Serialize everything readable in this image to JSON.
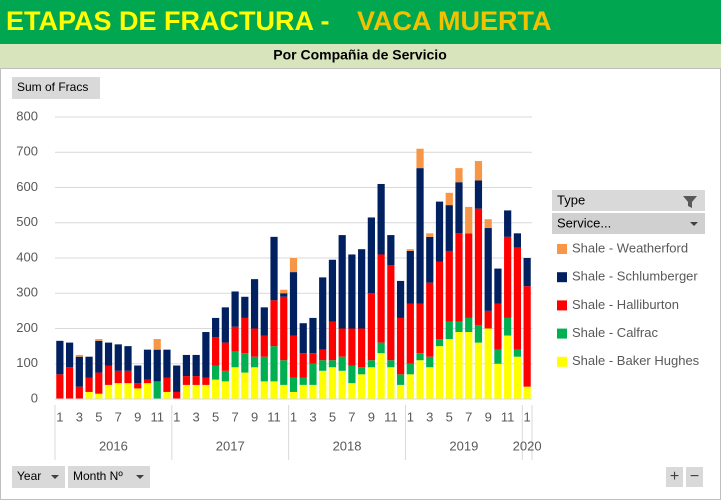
{
  "chart_data": {
    "type": "stacked_bar",
    "title": "ETAPAS DE FRACTURA -",
    "title_highlight": "VACA MUERTA",
    "subtitle": "Por Compañia de Servicio",
    "categories": [
      "1",
      null,
      "3",
      null,
      "5",
      null,
      "7",
      null,
      "9",
      null,
      "11",
      null,
      "1",
      null,
      "3",
      null,
      "5",
      null,
      "7",
      null,
      "9",
      null,
      "11",
      null,
      "1",
      null,
      "3",
      null,
      "5",
      null,
      "7",
      null,
      "9",
      null,
      "11",
      null,
      "1",
      null,
      "3",
      null,
      "5",
      null,
      "7",
      null,
      "9",
      null,
      "11",
      null,
      "1"
    ],
    "years": [
      "2016",
      "2017",
      "2018",
      "2019",
      "2020"
    ],
    "series": [
      {
        "name": "Shale - Baker Hughes",
        "color": "#ffff00",
        "values": [
          0,
          0,
          0,
          20,
          15,
          40,
          45,
          45,
          30,
          45,
          0,
          20,
          0,
          40,
          40,
          40,
          55,
          50,
          90,
          75,
          90,
          50,
          50,
          40,
          20,
          40,
          40,
          80,
          90,
          80,
          45,
          70,
          90,
          130,
          90,
          40,
          70,
          110,
          90,
          150,
          170,
          190,
          190,
          160,
          200,
          100,
          180,
          120,
          35
        ]
      },
      {
        "name": "Shale - Calfrac",
        "color": "#00b050",
        "values": [
          0,
          0,
          0,
          0,
          0,
          0,
          0,
          0,
          0,
          0,
          50,
          0,
          0,
          0,
          0,
          0,
          40,
          30,
          45,
          55,
          30,
          70,
          100,
          70,
          40,
          20,
          60,
          30,
          20,
          40,
          50,
          20,
          20,
          30,
          20,
          30,
          30,
          20,
          30,
          20,
          50,
          30,
          40,
          50,
          0,
          40,
          50,
          20,
          0
        ]
      },
      {
        "name": "Shale - Halliburton",
        "color": "#ff0000",
        "values": [
          70,
          90,
          35,
          40,
          60,
          55,
          35,
          35,
          15,
          10,
          0,
          40,
          20,
          25,
          25,
          20,
          80,
          80,
          70,
          100,
          80,
          60,
          130,
          180,
          120,
          70,
          30,
          30,
          110,
          80,
          105,
          110,
          190,
          250,
          270,
          160,
          170,
          140,
          210,
          220,
          200,
          250,
          240,
          330,
          50,
          130,
          230,
          290,
          285
        ]
      },
      {
        "name": "Shale - Schlumberger",
        "color": "#002060",
        "values": [
          95,
          70,
          85,
          60,
          90,
          65,
          75,
          70,
          50,
          85,
          90,
          80,
          75,
          60,
          60,
          130,
          55,
          100,
          100,
          60,
          140,
          80,
          180,
          10,
          180,
          85,
          100,
          205,
          175,
          265,
          210,
          225,
          215,
          200,
          85,
          105,
          150,
          385,
          130,
          170,
          130,
          145,
          0,
          80,
          235,
          100,
          75,
          40,
          80
        ]
      },
      {
        "name": "Shale - Weatherford",
        "color": "#f79646",
        "values": [
          0,
          0,
          5,
          0,
          5,
          0,
          0,
          0,
          0,
          0,
          30,
          0,
          0,
          0,
          0,
          0,
          0,
          0,
          0,
          0,
          0,
          0,
          0,
          10,
          40,
          0,
          0,
          0,
          0,
          0,
          0,
          0,
          0,
          0,
          0,
          0,
          5,
          55,
          10,
          0,
          35,
          40,
          75,
          55,
          25,
          0,
          0,
          0,
          0
        ]
      }
    ],
    "ylim": [
      0,
      800
    ],
    "yticks": [
      0,
      100,
      200,
      300,
      400,
      500,
      600,
      700,
      800
    ],
    "grid": true
  },
  "ui": {
    "value_button": "Sum of Fracs",
    "legend_header": "Type",
    "legend_field": "Service...",
    "axis_buttons": [
      "Year",
      "Month Nº"
    ],
    "zoom_buttons": [
      "+",
      "−"
    ]
  }
}
